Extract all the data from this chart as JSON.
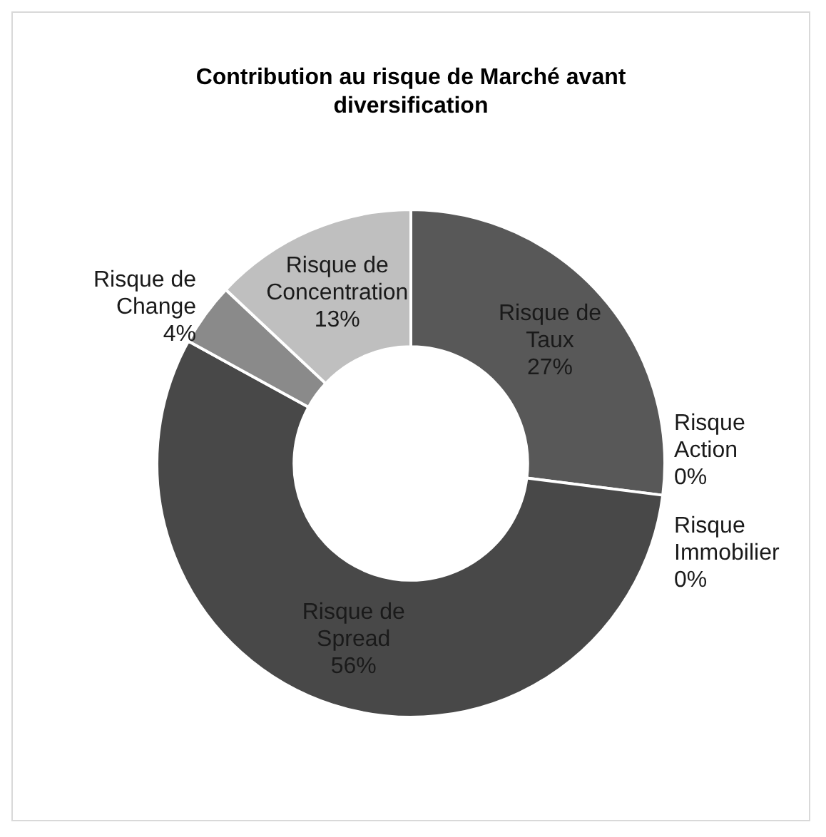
{
  "chart_data": {
    "type": "donut",
    "title": "Contribution au risque de Marché avant diversification",
    "categories": [
      "Risque de Taux",
      "Risque Action",
      "Risque Immobilier",
      "Risque de Spread",
      "Risque de Change",
      "Risque de Concentration"
    ],
    "values": [
      27,
      0,
      0,
      56,
      4,
      13
    ],
    "value_labels": [
      "27%",
      "0%",
      "0%",
      "56%",
      "4%",
      "13%"
    ],
    "colors": [
      "#585858",
      "#6e6e6e",
      "#7a7a7a",
      "#484848",
      "#8a8a8a",
      "#bfbfbf"
    ],
    "legend": false
  }
}
